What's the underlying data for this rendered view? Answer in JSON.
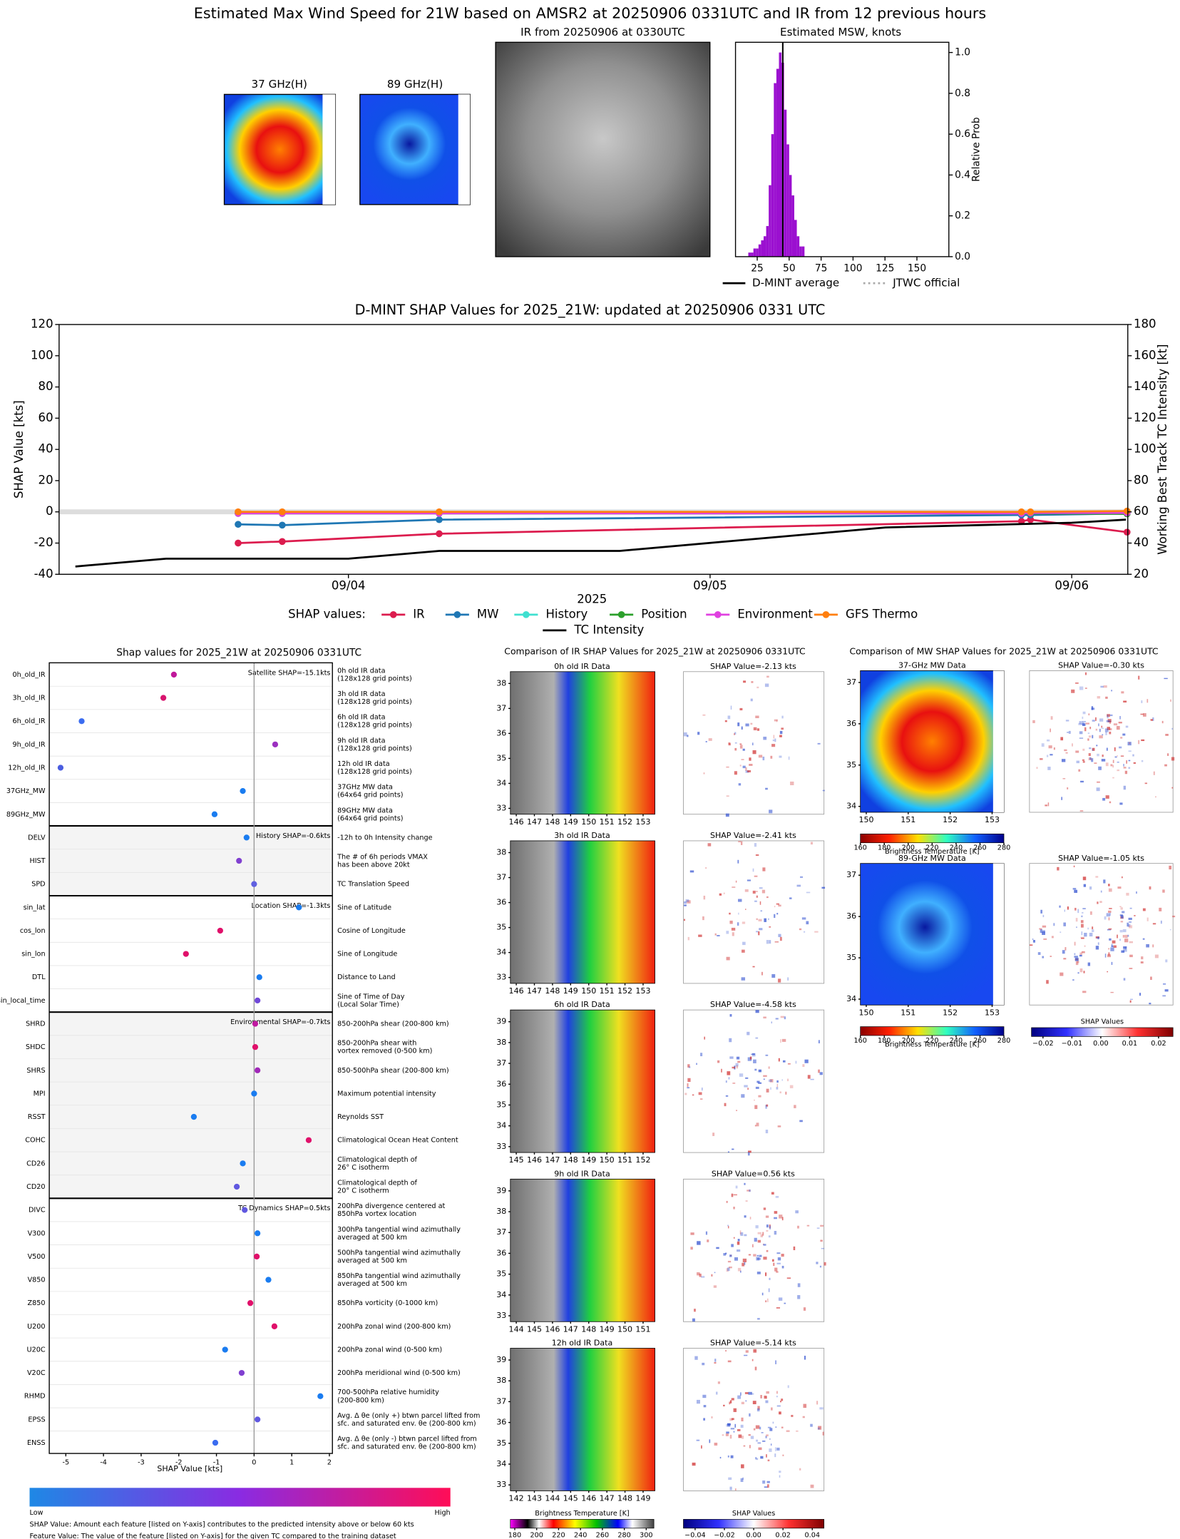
{
  "title": "Estimated Max Wind Speed for 21W based on AMSR2 at 20250906 0331UTC and IR from 12 previous hours",
  "top_panels": {
    "mw37": "37 GHz(H)",
    "mw89": "89 GHz(H)",
    "ir": "IR from 20250906 at 0330UTC"
  },
  "chart_data": [
    {
      "type": "histogram",
      "title": "Estimated MSW, knots",
      "ylabel": "Relative Prob",
      "color": "#9b10d0",
      "bins": [
        18,
        20,
        22,
        24,
        26,
        28,
        30,
        32,
        34,
        36,
        38,
        40,
        42,
        44,
        46,
        48,
        50,
        52,
        54,
        56,
        58,
        60,
        62
      ],
      "counts": [
        0.02,
        0.02,
        0.04,
        0.04,
        0.06,
        0.08,
        0.1,
        0.15,
        0.35,
        0.6,
        0.85,
        0.92,
        1.0,
        0.95,
        0.72,
        0.55,
        0.4,
        0.3,
        0.18,
        0.1,
        0.05,
        0.05
      ],
      "dmint_average": 45,
      "xlim": [
        8,
        175
      ],
      "xticks": [
        25,
        50,
        75,
        100,
        125,
        150
      ],
      "ylim": [
        0,
        1.05
      ],
      "yticks": [
        {
          "value": 0,
          "label": "0.0"
        },
        {
          "value": 0.2,
          "label": "0.2"
        },
        {
          "value": 0.4,
          "label": "0.4"
        },
        {
          "value": 0.6,
          "label": "0.6"
        },
        {
          "value": 0.8,
          "label": "0.8"
        },
        {
          "value": 1.0,
          "label": "1.0"
        }
      ],
      "legend": [
        {
          "name": "D-MINT average",
          "color": "#000000"
        },
        {
          "name": "JTWC official",
          "color": "#aaaaaa",
          "dotted": true
        }
      ]
    },
    {
      "type": "line",
      "title": "D-MINT SHAP Values for 2025_21W: updated at 20250906 0331 UTC",
      "ylabel": "SHAP Value [kts]",
      "y2label": "Working Best Track TC Intensity [kt]",
      "xlabel": "2025",
      "legend_title": "SHAP values:",
      "xlim": [
        3.2,
        6.155
      ],
      "xticks": [
        {
          "value": 4,
          "label": "09/04"
        },
        {
          "value": 5,
          "label": "09/05"
        },
        {
          "value": 6,
          "label": "09/06"
        }
      ],
      "ylim": [
        -40,
        120
      ],
      "yticks": [
        -40,
        -20,
        0,
        20,
        40,
        60,
        80,
        100,
        120
      ],
      "y2lim": [
        20,
        180
      ],
      "y2ticks": [
        20,
        40,
        60,
        80,
        100,
        120,
        140,
        160,
        180
      ],
      "series": [
        {
          "name": "IR",
          "color": "#dc1c4e",
          "x": [
            3.695,
            3.817,
            4.251,
            5.861,
            5.886,
            6.153
          ],
          "values": [
            -20,
            -19,
            -14,
            -6,
            -5,
            -13
          ]
        },
        {
          "name": "MW",
          "color": "#1f77b4",
          "x": [
            3.695,
            3.817,
            4.251,
            5.861,
            5.886,
            6.153
          ],
          "values": [
            -8,
            -8.5,
            -5,
            -2,
            -2,
            -1
          ]
        },
        {
          "name": "History",
          "color": "#40e0d0",
          "x": [
            3.695,
            3.817,
            4.251,
            5.861,
            5.886,
            6.153
          ],
          "values": [
            -1,
            -1,
            -1,
            -1,
            -1,
            -0.6
          ]
        },
        {
          "name": "Position",
          "color": "#2ca02c",
          "x": [
            3.695,
            3.817,
            4.251,
            5.861,
            5.886,
            6.153
          ],
          "values": [
            -1,
            -1,
            -1,
            -1,
            -1,
            -1.3
          ]
        },
        {
          "name": "Environment",
          "color": "#e040e0",
          "x": [
            3.695,
            3.817,
            4.251,
            5.861,
            5.886,
            6.153
          ],
          "values": [
            -1,
            -1,
            -1,
            -1,
            -0.7,
            -0.7
          ]
        },
        {
          "name": "GFS Thermo",
          "color": "#ff7f0e",
          "x": [
            3.695,
            3.817,
            4.251,
            5.861,
            5.886,
            6.153
          ],
          "values": [
            0,
            0,
            0,
            0,
            0,
            0.5
          ]
        },
        {
          "name": "TC Intensity",
          "color": "#000000",
          "axis": "y2",
          "marker": false,
          "x": [
            3.245,
            3.496,
            4.0,
            4.251,
            4.75,
            5.485,
            6.0,
            6.15
          ],
          "values": [
            25,
            30,
            30,
            35,
            35,
            50,
            53,
            55
          ]
        }
      ]
    },
    {
      "type": "dot",
      "title": "Shap values for 2025_21W at 20250906 0331UTC",
      "xlabel": "SHAP Value [kts]",
      "xlim": [
        -5.44,
        2.08
      ],
      "xticks": [
        -5,
        -4,
        -3,
        -2,
        -1,
        0,
        1,
        2
      ],
      "colorbar": {
        "low": "Low",
        "high": "High"
      },
      "notes": [
        "SHAP Value: Amount each feature [listed on Y-axis] contributes to the predicted intensity above or below 60 kts",
        "Feature Value: The value of the feature [listed on Y-axis] for the given TC compared to the training dataset"
      ],
      "groups": [
        {
          "label": "Satellite SHAP=-15.1kts",
          "shaded": false,
          "features": [
            {
              "name": "0h_old_IR",
              "description": [
                "0h old IR data",
                "(128x128 grid points)"
              ],
              "value": -2.13,
              "color": "#c0189a"
            },
            {
              "name": "3h_old_IR",
              "description": [
                "3h old IR data",
                "(128x128 grid points)"
              ],
              "value": -2.41,
              "color": "#d8146e"
            },
            {
              "name": "6h_old_IR",
              "description": [
                "6h old IR data",
                "(128x128 grid points)"
              ],
              "value": -4.58,
              "color": "#3b6cf0"
            },
            {
              "name": "9h_old_IR",
              "description": [
                "9h old IR data",
                "(128x128 grid points)"
              ],
              "value": 0.56,
              "color": "#9b2fc0"
            },
            {
              "name": "12h_old_IR",
              "description": [
                "12h old IR data",
                "(128x128 grid points)"
              ],
              "value": -5.14,
              "color": "#4a5de0"
            },
            {
              "name": "37GHz_MW",
              "description": [
                "37GHz MW data",
                "(64x64 grid points)"
              ],
              "value": -0.3,
              "color": "#1a7cf0"
            },
            {
              "name": "89GHz_MW",
              "description": [
                "89GHz MW data",
                "(64x64 grid points)"
              ],
              "value": -1.05,
              "color": "#1a7cf0"
            }
          ]
        },
        {
          "label": "History SHAP=-0.6kts",
          "shaded": true,
          "features": [
            {
              "name": "DELV",
              "description": [
                "-12h to 0h Intensity change"
              ],
              "value": -0.2,
              "color": "#1a7cf0"
            },
            {
              "name": "HIST",
              "description": [
                "The # of 6h periods VMAX",
                "has been above 20kt"
              ],
              "value": -0.4,
              "color": "#8040d0"
            },
            {
              "name": "SPD",
              "description": [
                "TC Translation Speed"
              ],
              "value": 0.0,
              "color": "#6060e0"
            }
          ]
        },
        {
          "label": "Location SHAP=-1.3kts",
          "shaded": false,
          "features": [
            {
              "name": "sin_lat",
              "description": [
                "Sine of Latitude"
              ],
              "value": 1.19,
              "color": "#1a7cf0"
            },
            {
              "name": "cos_lon",
              "description": [
                "Cosine of Longitude"
              ],
              "value": -0.9,
              "color": "#e0106a"
            },
            {
              "name": "sin_lon",
              "description": [
                "Sine of Longitude"
              ],
              "value": -1.81,
              "color": "#e0106a"
            },
            {
              "name": "DTL",
              "description": [
                "Distance to Land"
              ],
              "value": 0.14,
              "color": "#1a7cf0"
            },
            {
              "name": "sin_local_time",
              "description": [
                "Sine of Time of Day",
                "(Local Solar Time)"
              ],
              "value": 0.09,
              "color": "#7048d8"
            }
          ]
        },
        {
          "label": "Environmental SHAP=-0.7kts",
          "shaded": true,
          "features": [
            {
              "name": "SHRD",
              "description": [
                "850-200hPa shear (200-800 km)"
              ],
              "value": 0.03,
              "color": "#c018a0"
            },
            {
              "name": "SHDC",
              "description": [
                "850-200hPa shear with",
                "vortex removed (0-500 km)"
              ],
              "value": 0.03,
              "color": "#e0106a"
            },
            {
              "name": "SHRS",
              "description": [
                "850-500hPa shear (200-800 km)"
              ],
              "value": 0.09,
              "color": "#a028b8"
            },
            {
              "name": "MPI",
              "description": [
                "Maximum potential intensity"
              ],
              "value": 0.0,
              "color": "#1a7cf0"
            },
            {
              "name": "RSST",
              "description": [
                "Reynolds SST"
              ],
              "value": -1.6,
              "color": "#1a7cf0"
            },
            {
              "name": "COHC",
              "description": [
                "Climatological Ocean Heat Content"
              ],
              "value": 1.45,
              "color": "#e0106a"
            },
            {
              "name": "CD26",
              "description": [
                "Climatological depth of",
                "26° C isotherm"
              ],
              "value": -0.3,
              "color": "#1a7cf0"
            },
            {
              "name": "CD20",
              "description": [
                "Climatological depth of",
                "20° C isotherm"
              ],
              "value": -0.46,
              "color": "#6058e0"
            }
          ]
        },
        {
          "label": "TC Dynamics SHAP=0.5kts",
          "shaded": false,
          "features": [
            {
              "name": "DIVC",
              "description": [
                "200hPa divergence centered at",
                "850hPa vortex location"
              ],
              "value": -0.25,
              "color": "#6058e0"
            },
            {
              "name": "V300",
              "description": [
                "300hPa tangential wind azimuthally",
                "averaged at 500 km"
              ],
              "value": 0.09,
              "color": "#1a7cf0"
            },
            {
              "name": "V500",
              "description": [
                "500hPa tangential wind azimuthally",
                "averaged at 500 km"
              ],
              "value": 0.07,
              "color": "#e0106a"
            },
            {
              "name": "V850",
              "description": [
                "850hPa tangential wind azimuthally",
                "averaged at 500 km"
              ],
              "value": 0.38,
              "color": "#1a7cf0"
            },
            {
              "name": "Z850",
              "description": [
                "850hPa vorticity (0-1000 km)"
              ],
              "value": -0.1,
              "color": "#e0106a"
            },
            {
              "name": "U200",
              "description": [
                "200hPa zonal wind (200-800 km)"
              ],
              "value": 0.54,
              "color": "#e0106a"
            },
            {
              "name": "U20C",
              "description": [
                "200hPa zonal wind (0-500 km)"
              ],
              "value": -0.77,
              "color": "#1a7cf0"
            },
            {
              "name": "V20C",
              "description": [
                "200hPa meridional wind (0-500 km)"
              ],
              "value": -0.33,
              "color": "#8040d0"
            },
            {
              "name": "RHMD",
              "description": [
                "700-500hPa relative humidity",
                "(200-800 km)"
              ],
              "value": 1.76,
              "color": "#1a7cf0"
            },
            {
              "name": "EPSS",
              "description": [
                "Avg. Δ θe (only +) btwn parcel lifted from",
                "sfc. and saturated env. θe (200-800 km)"
              ],
              "value": 0.09,
              "color": "#6058e0"
            },
            {
              "name": "ENSS",
              "description": [
                "Avg. Δ θe (only -) btwn parcel lifted from",
                "sfc. and saturated env. θe (200-800 km)"
              ],
              "value": -1.03,
              "color": "#3b6cf0"
            }
          ]
        }
      ]
    }
  ],
  "ir_comparison": {
    "title": "Comparison of IR SHAP Values for 2025_21W at 20250906 0331UTC",
    "panels": [
      {
        "title": "0h old IR Data",
        "shap_title": "SHAP Value=-2.13 kts",
        "lon_ticks": [
          146,
          147,
          148,
          149,
          150,
          151,
          152,
          153
        ],
        "lat_ticks": [
          33,
          34,
          35,
          36,
          37,
          38
        ]
      },
      {
        "title": "3h old IR Data",
        "shap_title": "SHAP Value=-2.41 kts",
        "lon_ticks": [
          146,
          147,
          148,
          149,
          150,
          151,
          152,
          153
        ],
        "lat_ticks": [
          33,
          34,
          35,
          36,
          37,
          38
        ]
      },
      {
        "title": "6h old IR Data",
        "shap_title": "SHAP Value=-4.58 kts",
        "lon_ticks": [
          145,
          146,
          147,
          148,
          149,
          150,
          151,
          152
        ],
        "lat_ticks": [
          33,
          34,
          35,
          36,
          37,
          38,
          39
        ]
      },
      {
        "title": "9h old IR Data",
        "shap_title": "SHAP Value=0.56 kts",
        "lon_ticks": [
          144,
          145,
          146,
          147,
          148,
          149,
          150,
          151
        ],
        "lat_ticks": [
          33,
          34,
          35,
          36,
          37,
          38,
          39
        ]
      },
      {
        "title": "12h old IR Data",
        "shap_title": "SHAP Value=-5.14 kts",
        "lon_ticks": [
          142,
          143,
          144,
          145,
          146,
          147,
          148,
          149
        ],
        "lat_ticks": [
          33,
          34,
          35,
          36,
          37,
          38,
          39
        ]
      }
    ],
    "bt_colorbar": {
      "label": "Brightness Temperature [K]",
      "lim": [
        176,
        307
      ],
      "ticks": [
        180,
        200,
        220,
        240,
        260,
        280,
        300
      ]
    },
    "shap_colorbar": {
      "label": "SHAP Values",
      "lim": [
        -0.048,
        0.048
      ],
      "ticks": [
        {
          "value": -0.04,
          "label": "−0.04"
        },
        {
          "value": -0.02,
          "label": "−0.02"
        },
        {
          "value": 0,
          "label": "0.00"
        },
        {
          "value": 0.02,
          "label": "0.02"
        },
        {
          "value": 0.04,
          "label": "0.04"
        }
      ]
    }
  },
  "mw_comparison": {
    "title": "Comparison of MW SHAP Values for 2025_21W at 20250906 0331UTC",
    "panels": [
      {
        "title": "37-GHz MW Data",
        "shap_title": "SHAP Value=-0.30 kts"
      },
      {
        "title": "89-GHz MW Data",
        "shap_title": "SHAP Value=-1.05 kts"
      }
    ],
    "lon_ticks": [
      150,
      151,
      152,
      153
    ],
    "lat_ticks": [
      34,
      35,
      36,
      37
    ],
    "bt_colorbar": {
      "label": "Brightness Temperature [K]",
      "lim": [
        160,
        280
      ],
      "ticks": [
        160,
        180,
        200,
        220,
        240,
        260,
        280
      ]
    },
    "shap_colorbar": {
      "label": "SHAP Values",
      "lim": [
        -0.024,
        0.025
      ],
      "ticks": [
        {
          "value": -0.02,
          "label": "−0.02"
        },
        {
          "value": -0.01,
          "label": "−0.01"
        },
        {
          "value": 0,
          "label": "0.00"
        },
        {
          "value": 0.01,
          "label": "0.01"
        },
        {
          "value": 0.02,
          "label": "0.02"
        }
      ]
    }
  }
}
